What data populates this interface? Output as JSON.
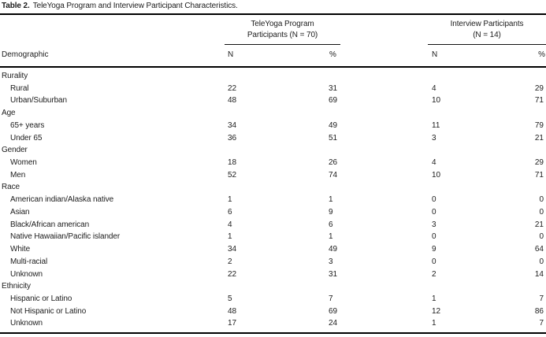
{
  "title": {
    "label": "Table 2.",
    "text": "TeleYoga Program and Interview Participant Characteristics."
  },
  "header": {
    "group1": {
      "line1": "TeleYoga Program",
      "line2": "Participants (N = 70)"
    },
    "group2": {
      "line1": "Interview Participants",
      "line2": "(N = 14)"
    },
    "demographic": "Demographic",
    "col_n1": "N",
    "col_pct1": "%",
    "col_n2": "N",
    "col_pct2": "%"
  },
  "rows": [
    {
      "label": "Rurality",
      "indent": false,
      "values": [
        "",
        "",
        "",
        ""
      ]
    },
    {
      "label": "Rural",
      "indent": true,
      "values": [
        "22",
        "31",
        "4",
        "29"
      ]
    },
    {
      "label": "Urban/Suburban",
      "indent": true,
      "values": [
        "48",
        "69",
        "10",
        "71"
      ]
    },
    {
      "label": "Age",
      "indent": false,
      "values": [
        "",
        "",
        "",
        ""
      ]
    },
    {
      "label": "65+ years",
      "indent": true,
      "values": [
        "34",
        "49",
        "11",
        "79"
      ]
    },
    {
      "label": "Under 65",
      "indent": true,
      "values": [
        "36",
        "51",
        "3",
        "21"
      ]
    },
    {
      "label": "Gender",
      "indent": false,
      "values": [
        "",
        "",
        "",
        ""
      ]
    },
    {
      "label": "Women",
      "indent": true,
      "values": [
        "18",
        "26",
        "4",
        "29"
      ]
    },
    {
      "label": "Men",
      "indent": true,
      "values": [
        "52",
        "74",
        "10",
        "71"
      ]
    },
    {
      "label": "Race",
      "indent": false,
      "values": [
        "",
        "",
        "",
        ""
      ]
    },
    {
      "label": "American indian/Alaska native",
      "indent": true,
      "values": [
        "1",
        "1",
        "0",
        "0"
      ]
    },
    {
      "label": "Asian",
      "indent": true,
      "values": [
        "6",
        "9",
        "0",
        "0"
      ]
    },
    {
      "label": "Black/African american",
      "indent": true,
      "values": [
        "4",
        "6",
        "3",
        "21"
      ]
    },
    {
      "label": "Native Hawaiian/Pacific islander",
      "indent": true,
      "values": [
        "1",
        "1",
        "0",
        "0"
      ]
    },
    {
      "label": "White",
      "indent": true,
      "values": [
        "34",
        "49",
        "9",
        "64"
      ]
    },
    {
      "label": "Multi-racial",
      "indent": true,
      "values": [
        "2",
        "3",
        "0",
        "0"
      ]
    },
    {
      "label": "Unknown",
      "indent": true,
      "values": [
        "22",
        "31",
        "2",
        "14"
      ]
    },
    {
      "label": "Ethnicity",
      "indent": false,
      "values": [
        "",
        "",
        "",
        ""
      ]
    },
    {
      "label": "Hispanic or Latino",
      "indent": true,
      "values": [
        "5",
        "7",
        "1",
        "7"
      ]
    },
    {
      "label": "Not Hispanic or Latino",
      "indent": true,
      "values": [
        "48",
        "69",
        "12",
        "86"
      ]
    },
    {
      "label": "Unknown",
      "indent": true,
      "values": [
        "17",
        "24",
        "1",
        "7"
      ]
    }
  ]
}
